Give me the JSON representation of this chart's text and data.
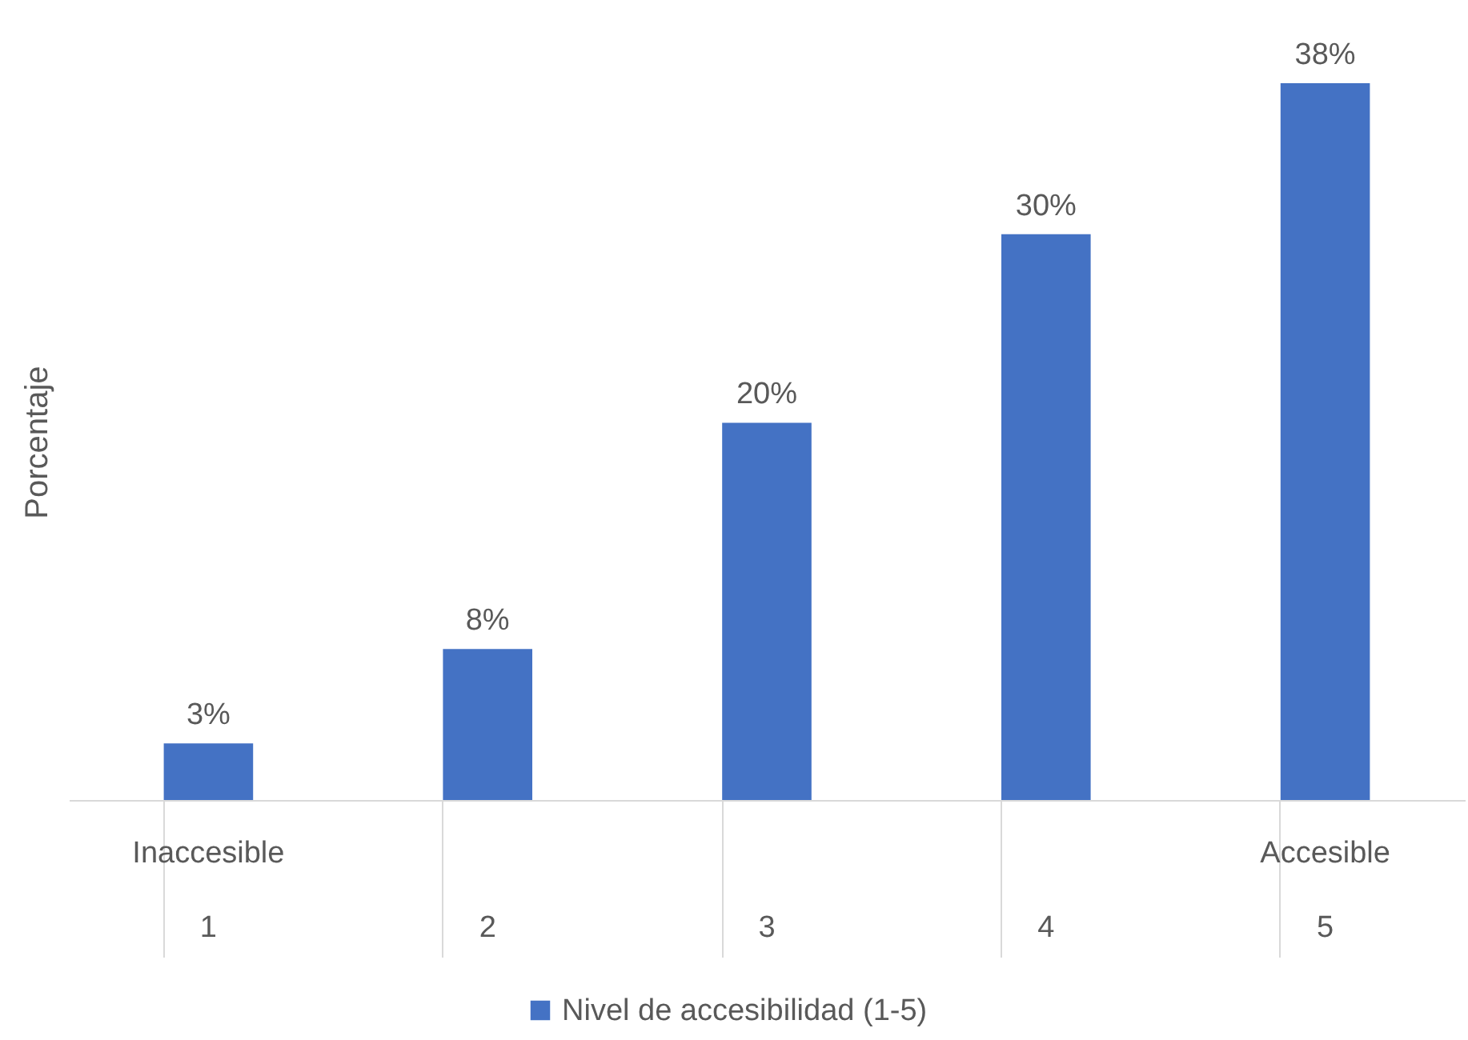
{
  "chart_data": {
    "type": "bar",
    "ylabel": "Porcentaje",
    "categories": [
      "1",
      "2",
      "3",
      "4",
      "5"
    ],
    "series": [
      {
        "name": "Nivel de accesibilidad (1-5)",
        "color": "#4472c4",
        "values": [
          3,
          8,
          20,
          30,
          38
        ],
        "value_labels": [
          "3%",
          "8%",
          "20%",
          "30%",
          "38%"
        ]
      }
    ],
    "annotations": [
      "Inaccesible",
      "Accesible"
    ],
    "relative": false,
    "grid": false,
    "legend": "bottom"
  }
}
